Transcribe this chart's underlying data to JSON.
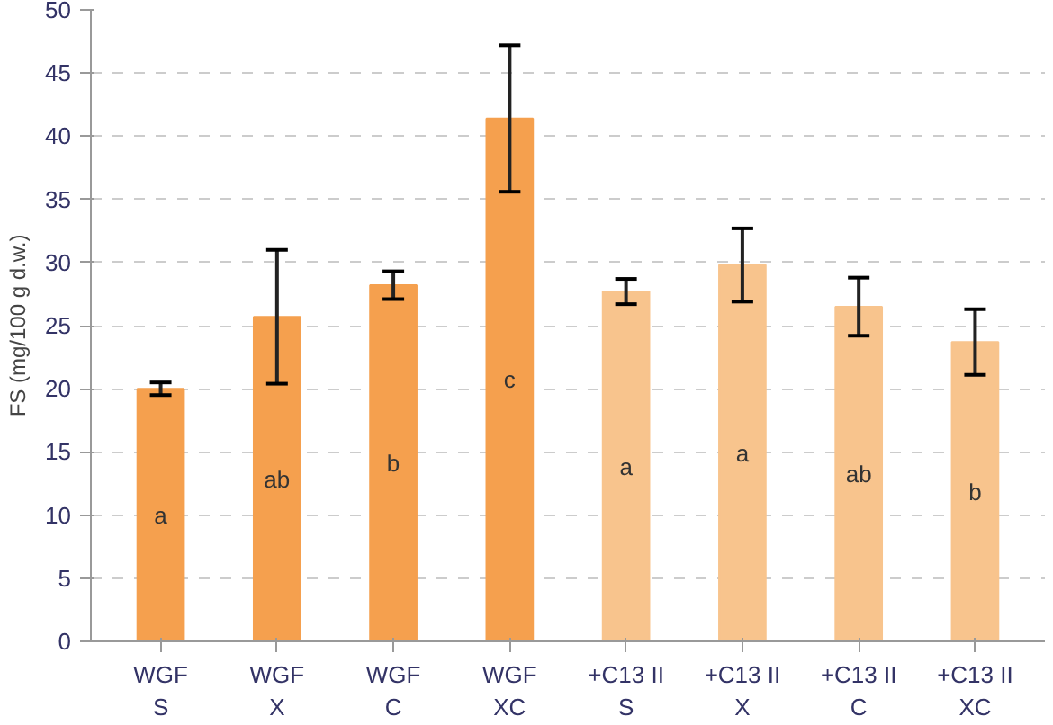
{
  "chart_data": {
    "type": "bar",
    "ylabel": "FS (mg/100 g d.w.)",
    "categories": [
      "WGF\nS",
      "WGF\nX",
      "WGF\nC",
      "WGF\nXC",
      "+C13 II\nS",
      "+C13 II\nX",
      "+C13 II\nC",
      "+C13 II\nXC"
    ],
    "values": [
      20,
      25.7,
      28.2,
      41.4,
      27.7,
      29.8,
      26.5,
      23.7
    ],
    "colors": [
      "#f5a04e",
      "#f5a04e",
      "#f5a04e",
      "#f5a04e",
      "#f8c48d",
      "#f8c48d",
      "#f8c48d",
      "#f8c48d"
    ],
    "errors": [
      0.5,
      5.3,
      1.1,
      5.8,
      1,
      2.9,
      2.3,
      2.6
    ],
    "ylim": [
      0,
      50
    ],
    "yticks": [
      0,
      5,
      10,
      15,
      20,
      25,
      30,
      35,
      40,
      45,
      50
    ],
    "grid": "y",
    "annotations": [
      "a",
      "ab",
      "b",
      "c",
      "a",
      "a",
      "ab",
      "b"
    ]
  }
}
